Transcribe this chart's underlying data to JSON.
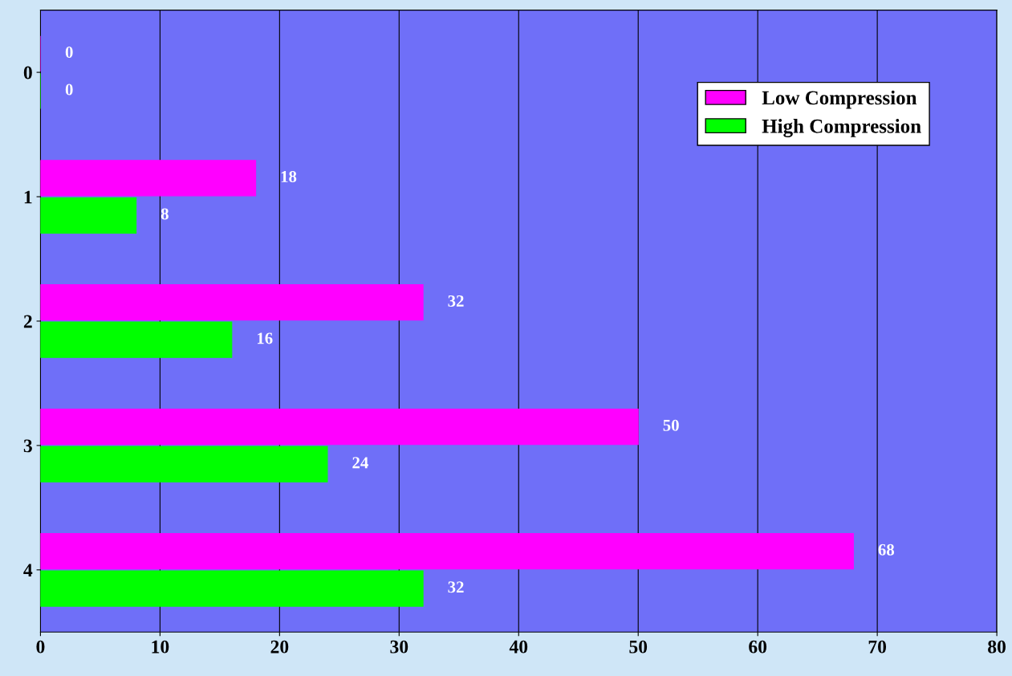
{
  "chart_data": {
    "type": "bar",
    "orientation": "horizontal",
    "categories": [
      "0",
      "1",
      "2",
      "3",
      "4"
    ],
    "series": [
      {
        "name": "Low Compression",
        "color": "#ff00ff",
        "values": [
          0,
          18,
          32,
          50,
          68
        ]
      },
      {
        "name": "High Compression",
        "color": "#00ff00",
        "values": [
          0,
          8,
          16,
          24,
          32
        ]
      }
    ],
    "xlim": [
      0,
      80
    ],
    "xticks": [
      0,
      10,
      20,
      30,
      40,
      50,
      60,
      70,
      80
    ],
    "grid": "x",
    "legend": "top right",
    "data_labels": true
  }
}
